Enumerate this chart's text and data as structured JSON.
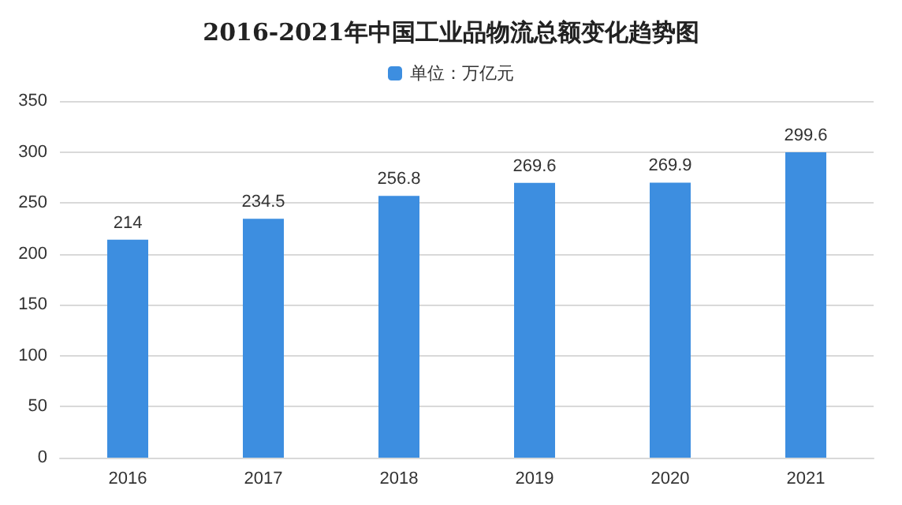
{
  "chart_data": {
    "type": "bar",
    "title": "2016-2021年中国工业品物流总额变化趋势图",
    "categories": [
      "2016",
      "2017",
      "2018",
      "2019",
      "2020",
      "2021"
    ],
    "series": [
      {
        "name": "单位：万亿元",
        "color": "#3d8ee0",
        "values": [
          214,
          234.5,
          256.8,
          269.6,
          269.9,
          299.6
        ]
      }
    ],
    "ylim": [
      0,
      350
    ],
    "yticks": [
      0,
      50,
      100,
      150,
      200,
      250,
      300,
      350
    ],
    "grid": "y",
    "legend": "top",
    "data_labels": true
  }
}
